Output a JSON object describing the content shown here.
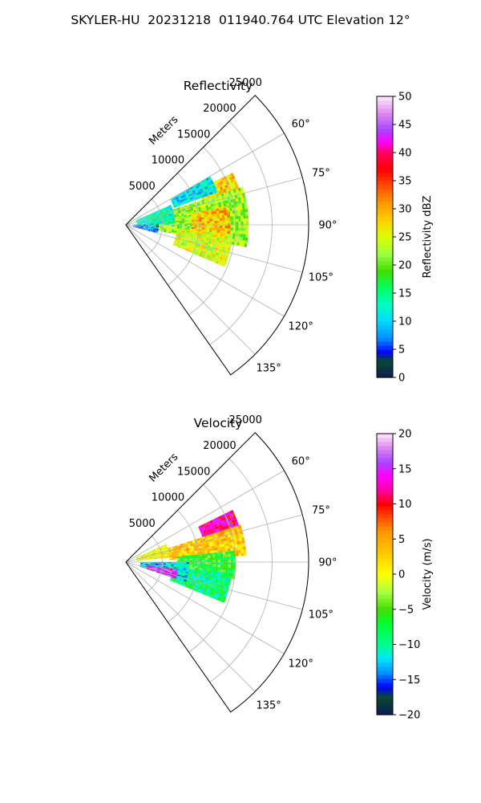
{
  "title": "SKYLER-HU  20231218  011940.764 UTC Elevation 12°",
  "chart_data": [
    {
      "type": "heatmap",
      "projection": "polar-sector",
      "title": "Reflectivity",
      "radial_label": "Meters",
      "radial_ticks": [
        5000,
        10000,
        15000,
        20000,
        25000
      ],
      "angle_ticks_deg": [
        60,
        75,
        90,
        105,
        120,
        135
      ],
      "angle_range_deg": [
        45,
        145
      ],
      "radius_max": 25000,
      "grid": true,
      "colorbar": {
        "label": "Reflectivity dBZ",
        "range": [
          0,
          50
        ],
        "ticks": [
          0,
          5,
          10,
          15,
          20,
          25,
          30,
          35,
          40,
          45,
          50
        ],
        "stops": [
          [
            0,
            "#0b1a55"
          ],
          [
            3,
            "#0b4a2e"
          ],
          [
            4.5,
            "#0000ff"
          ],
          [
            7,
            "#0090ff"
          ],
          [
            10,
            "#00d8ff"
          ],
          [
            13,
            "#00ffc0"
          ],
          [
            16,
            "#00ff60"
          ],
          [
            19,
            "#44dd00"
          ],
          [
            22,
            "#99ff44"
          ],
          [
            25,
            "#ddff00"
          ],
          [
            28,
            "#ffd000"
          ],
          [
            31,
            "#ff9900"
          ],
          [
            34,
            "#ff5000"
          ],
          [
            37,
            "#ff0000"
          ],
          [
            40,
            "#ff0060"
          ],
          [
            42,
            "#ff00ff"
          ],
          [
            44,
            "#aa44ff"
          ],
          [
            47,
            "#dd88ee"
          ],
          [
            50,
            "#ffe8ff"
          ]
        ]
      },
      "echo_regions": [
        {
          "angle": [
            64,
            73
          ],
          "range": [
            11000,
            16000
          ],
          "value": 28
        },
        {
          "angle": [
            72,
            100
          ],
          "range": [
            3500,
            16500
          ],
          "value": 22
        },
        {
          "angle": [
            80,
            96
          ],
          "range": [
            9000,
            14000
          ],
          "value": 29
        },
        {
          "angle": [
            95,
            112
          ],
          "range": [
            7000,
            14500
          ],
          "value": 25
        },
        {
          "angle": [
            60,
            70
          ],
          "range": [
            7000,
            13000
          ],
          "value": 11
        },
        {
          "angle": [
            66,
            88
          ],
          "range": [
            1500,
            6500
          ],
          "value": 13
        },
        {
          "angle": [
            88,
            104
          ],
          "range": [
            1000,
            4500
          ],
          "value": 8
        }
      ]
    },
    {
      "type": "heatmap",
      "projection": "polar-sector",
      "title": "Velocity",
      "radial_label": "Meters",
      "radial_ticks": [
        5000,
        10000,
        15000,
        20000,
        25000
      ],
      "angle_ticks_deg": [
        60,
        75,
        90,
        105,
        120,
        135
      ],
      "angle_range_deg": [
        45,
        145
      ],
      "radius_max": 25000,
      "grid": true,
      "colorbar": {
        "label": "Velocity (m/s)",
        "range": [
          -20,
          20
        ],
        "ticks": [
          -20,
          -15,
          -10,
          -5,
          0,
          5,
          10,
          15,
          20
        ],
        "stops": [
          [
            -20,
            "#0b1a55"
          ],
          [
            -17.5,
            "#0b4a2e"
          ],
          [
            -16,
            "#0000ff"
          ],
          [
            -14,
            "#0090ff"
          ],
          [
            -12,
            "#00e8ff"
          ],
          [
            -10,
            "#00ff90"
          ],
          [
            -7,
            "#00ff30"
          ],
          [
            -5,
            "#44dd00"
          ],
          [
            -2.5,
            "#aaff44"
          ],
          [
            0,
            "#ffff00"
          ],
          [
            3,
            "#ffc800"
          ],
          [
            6,
            "#ff9900"
          ],
          [
            8,
            "#ff5000"
          ],
          [
            10,
            "#ff0000"
          ],
          [
            12,
            "#ff00aa"
          ],
          [
            14,
            "#ff00ff"
          ],
          [
            16,
            "#aa44ff"
          ],
          [
            18,
            "#dd88ee"
          ],
          [
            20,
            "#ffe8ff"
          ]
        ]
      },
      "echo_regions": [
        {
          "angle": [
            64,
            74
          ],
          "range": [
            11000,
            16000
          ],
          "value": 12
        },
        {
          "angle": [
            72,
            86
          ],
          "range": [
            6000,
            16500
          ],
          "value": 3
        },
        {
          "angle": [
            84,
            98
          ],
          "range": [
            7000,
            15000
          ],
          "value": -6
        },
        {
          "angle": [
            96,
            112
          ],
          "range": [
            6500,
            14500
          ],
          "value": -9
        },
        {
          "angle": [
            90,
            108
          ],
          "range": [
            2000,
            8500
          ],
          "value": -12
        },
        {
          "angle": [
            66,
            84
          ],
          "range": [
            1500,
            6000
          ],
          "value": 0
        },
        {
          "angle": [
            98,
            108
          ],
          "range": [
            3000,
            7000
          ],
          "value": 15
        }
      ]
    }
  ]
}
